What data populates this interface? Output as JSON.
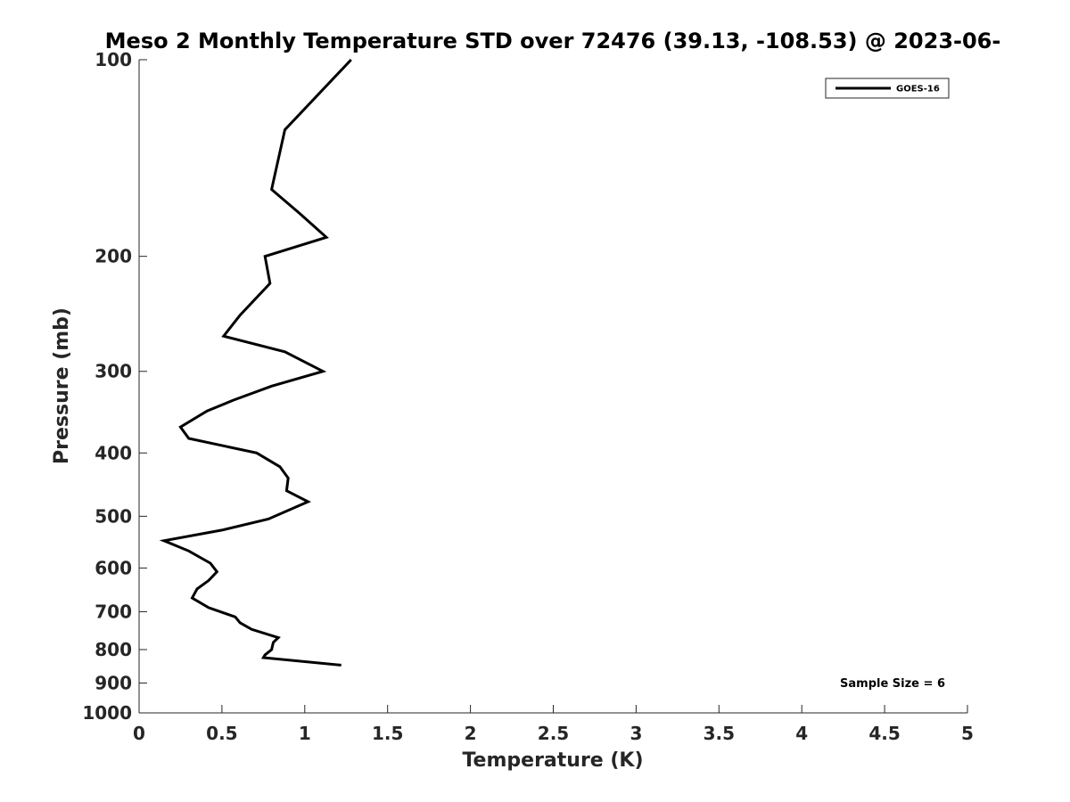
{
  "chart_data": {
    "type": "line",
    "title": "Meso 2 Monthly Temperature STD over 72476 (39.13, -108.53) @ 2023-06-",
    "xlabel": "Temperature (K)",
    "ylabel": "Pressure (mb)",
    "xlim": [
      0,
      5
    ],
    "ylim": [
      100,
      1000
    ],
    "yscale": "log",
    "y_reversed": true,
    "x_ticks": [
      "0",
      "0.5",
      "1",
      "1.5",
      "2",
      "2.5",
      "3",
      "3.5",
      "4",
      "4.5",
      "5"
    ],
    "y_ticks": [
      "100",
      "200",
      "300",
      "400",
      "500",
      "600",
      "700",
      "800",
      "900",
      "1000"
    ],
    "grid": false,
    "legend": {
      "position": "top-right",
      "entries": [
        "GOES-16"
      ]
    },
    "annotation": "Sample Size = 6",
    "series": [
      {
        "name": "GOES-16",
        "color": "#000000",
        "points": [
          {
            "x": 1.28,
            "y": 100
          },
          {
            "x": 0.88,
            "y": 128
          },
          {
            "x": 0.8,
            "y": 158
          },
          {
            "x": 0.97,
            "y": 172
          },
          {
            "x": 1.13,
            "y": 187
          },
          {
            "x": 0.76,
            "y": 200
          },
          {
            "x": 0.79,
            "y": 220
          },
          {
            "x": 0.61,
            "y": 246
          },
          {
            "x": 0.51,
            "y": 265
          },
          {
            "x": 0.88,
            "y": 280
          },
          {
            "x": 1.11,
            "y": 300
          },
          {
            "x": 0.8,
            "y": 316
          },
          {
            "x": 0.57,
            "y": 332
          },
          {
            "x": 0.41,
            "y": 345
          },
          {
            "x": 0.25,
            "y": 365
          },
          {
            "x": 0.3,
            "y": 380
          },
          {
            "x": 0.71,
            "y": 400
          },
          {
            "x": 0.85,
            "y": 420
          },
          {
            "x": 0.9,
            "y": 437
          },
          {
            "x": 0.89,
            "y": 457
          },
          {
            "x": 1.02,
            "y": 475
          },
          {
            "x": 0.78,
            "y": 505
          },
          {
            "x": 0.5,
            "y": 525
          },
          {
            "x": 0.15,
            "y": 545
          },
          {
            "x": 0.3,
            "y": 565
          },
          {
            "x": 0.43,
            "y": 590
          },
          {
            "x": 0.47,
            "y": 608
          },
          {
            "x": 0.42,
            "y": 627
          },
          {
            "x": 0.35,
            "y": 646
          },
          {
            "x": 0.32,
            "y": 667
          },
          {
            "x": 0.42,
            "y": 690
          },
          {
            "x": 0.58,
            "y": 713
          },
          {
            "x": 0.61,
            "y": 728
          },
          {
            "x": 0.68,
            "y": 745
          },
          {
            "x": 0.84,
            "y": 767
          },
          {
            "x": 0.81,
            "y": 780
          },
          {
            "x": 0.8,
            "y": 800
          },
          {
            "x": 0.76,
            "y": 815
          },
          {
            "x": 0.75,
            "y": 823
          },
          {
            "x": 1.22,
            "y": 845
          }
        ]
      }
    ]
  }
}
